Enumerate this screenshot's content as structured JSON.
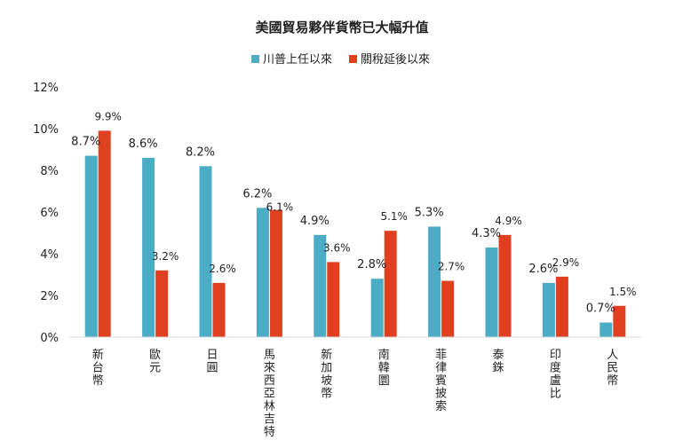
{
  "chart_data": {
    "type": "bar",
    "title": "美國貿易夥伴貨幣已大幅升值",
    "categories": [
      "新台幣",
      "歐元",
      "日圓",
      "馬來西亞林吉特",
      "新加坡幣",
      "南韓圜",
      "菲律賓披索",
      "泰銖",
      "印度盧比",
      "人民幣"
    ],
    "series": [
      {
        "name": "川普上任以來",
        "color": "#4bacc6",
        "values": [
          8.7,
          8.6,
          8.2,
          6.2,
          4.9,
          2.8,
          5.3,
          4.3,
          2.6,
          0.7
        ],
        "labels": [
          "8.7%",
          "8.6%",
          "8.2%",
          "6.2%",
          "4.9%",
          "2.8%",
          "5.3%",
          "4.3%",
          "2.6%",
          "0.7%"
        ]
      },
      {
        "name": "關稅延後以來",
        "color": "#e0401f",
        "values": [
          9.9,
          3.2,
          2.6,
          6.1,
          3.6,
          5.1,
          2.7,
          4.9,
          2.9,
          1.5
        ],
        "labels": [
          "9.9%",
          "3.2%",
          "2.6%",
          "6.1%",
          "3.6%",
          "5.1%",
          "2.7%",
          "4.9%",
          "2.9%",
          "1.5%"
        ]
      }
    ],
    "yticks": [
      "0%",
      "2%",
      "4%",
      "6%",
      "8%",
      "10%",
      "12%"
    ],
    "ylim": [
      0,
      12
    ],
    "grid": false,
    "legend_position": "top-center"
  }
}
